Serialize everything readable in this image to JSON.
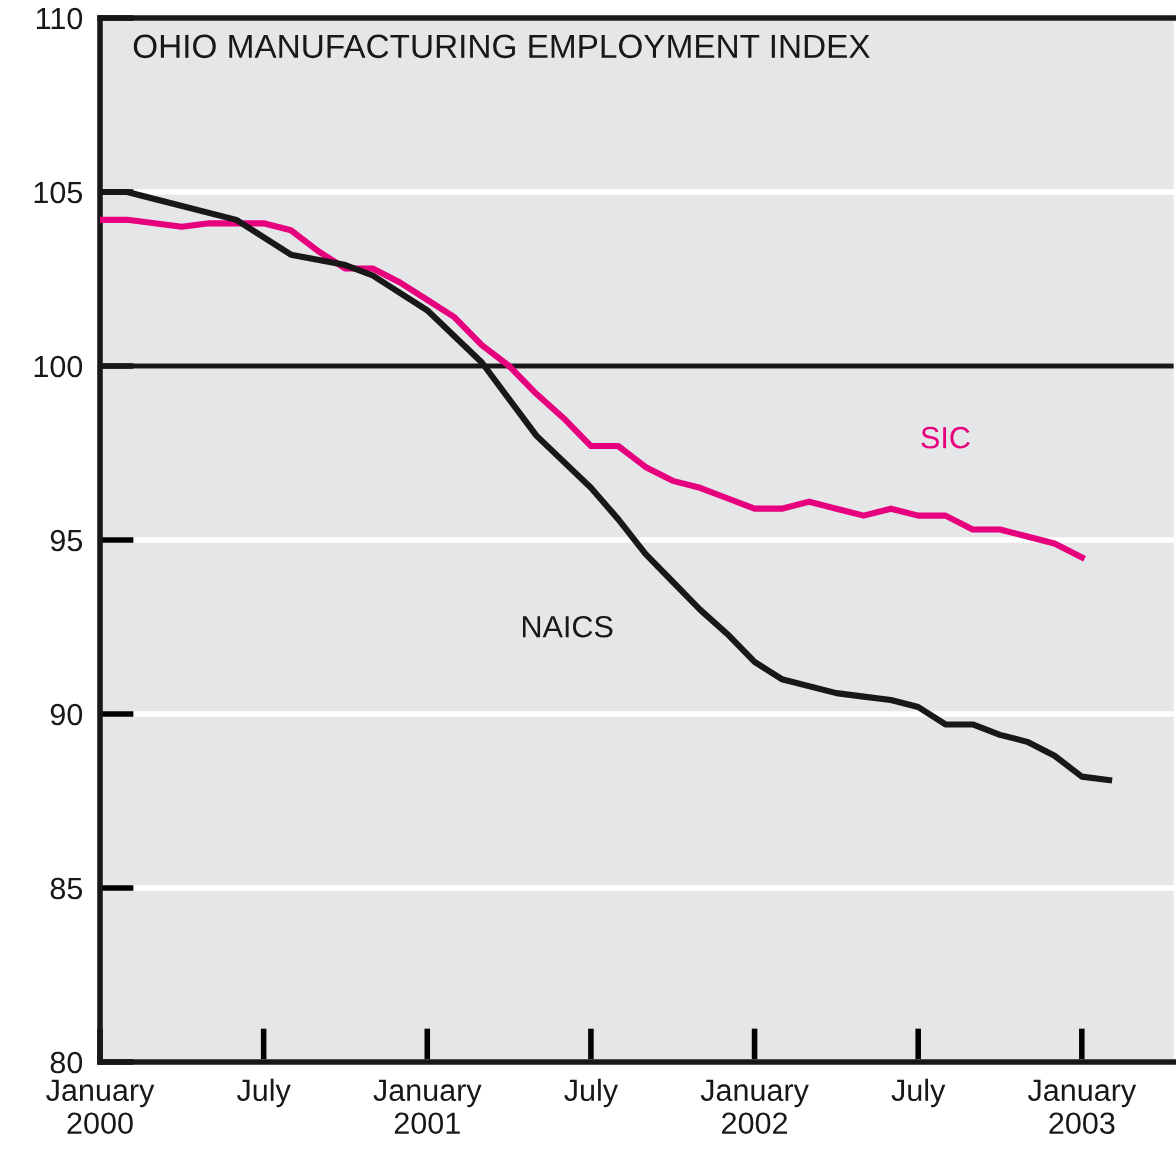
{
  "chart_data": {
    "type": "line",
    "title": "OHIO MANUFACTURING EMPLOYMENT INDEX",
    "series": [
      {
        "name": "SIC",
        "color": "#e6007e",
        "x": [
          "2000-01",
          "2000-02",
          "2000-03",
          "2000-04",
          "2000-05",
          "2000-06",
          "2000-07",
          "2000-08",
          "2000-09",
          "2000-10",
          "2000-11",
          "2000-12",
          "2001-01",
          "2001-02",
          "2001-03",
          "2001-04",
          "2001-05",
          "2001-06",
          "2001-07",
          "2001-08",
          "2001-09",
          "2001-10",
          "2001-11",
          "2001-12",
          "2002-01",
          "2002-02",
          "2002-03",
          "2002-04",
          "2002-05",
          "2002-06",
          "2002-07",
          "2002-08",
          "2002-09",
          "2002-10",
          "2002-11",
          "2002-12",
          "2003-01"
        ],
        "values": [
          104.2,
          104.2,
          104.1,
          104.0,
          104.1,
          104.1,
          104.1,
          103.9,
          103.3,
          102.8,
          102.8,
          102.4,
          101.9,
          101.4,
          100.6,
          100.0,
          99.2,
          98.5,
          97.7,
          97.7,
          97.1,
          96.7,
          96.5,
          96.2,
          95.9,
          95.9,
          96.1,
          95.9,
          95.7,
          95.9,
          95.7,
          95.7,
          95.3,
          95.3,
          95.1,
          94.9,
          94.5
        ]
      },
      {
        "name": "NAICS",
        "color": "#1a1718",
        "x": [
          "2000-01",
          "2000-02",
          "2000-03",
          "2000-06",
          "2000-08",
          "2000-10",
          "2000-11",
          "2001-01",
          "2001-03",
          "2001-05",
          "2001-07",
          "2001-08",
          "2001-09",
          "2001-10",
          "2001-11",
          "2001-12",
          "2002-01",
          "2002-02",
          "2002-04",
          "2002-05",
          "2002-06",
          "2002-07",
          "2002-08",
          "2002-09",
          "2002-10",
          "2002-11",
          "2002-12",
          "2003-01",
          "2003-02"
        ],
        "values": [
          105.0,
          105.0,
          104.8,
          104.2,
          103.2,
          102.9,
          102.6,
          101.6,
          100.1,
          98.0,
          96.5,
          95.6,
          94.6,
          93.8,
          93.0,
          92.3,
          91.5,
          91.0,
          90.6,
          90.5,
          90.4,
          90.2,
          89.7,
          89.7,
          89.4,
          89.2,
          88.8,
          88.2,
          88.1
        ]
      }
    ],
    "xlim": [
      "2000-01-01",
      "2003-04-12"
    ],
    "xticks": [
      {
        "value": "2000-01",
        "label": "January\n2000"
      },
      {
        "value": "2000-07",
        "label": "July"
      },
      {
        "value": "2001-01",
        "label": "January\n2001"
      },
      {
        "value": "2001-07",
        "label": "July"
      },
      {
        "value": "2002-01",
        "label": "January\n2002"
      },
      {
        "value": "2002-07",
        "label": "July"
      },
      {
        "value": "2003-01",
        "label": "January\n2003"
      }
    ],
    "ylim": [
      80,
      110
    ],
    "yticks": [
      80,
      85,
      90,
      95,
      100,
      105,
      110
    ],
    "grid": "y",
    "ref_lines": [
      {
        "axis": "y",
        "value": 100,
        "color": "#1a1718"
      }
    ],
    "line_style": "solid",
    "marker": "none",
    "legend": false
  }
}
